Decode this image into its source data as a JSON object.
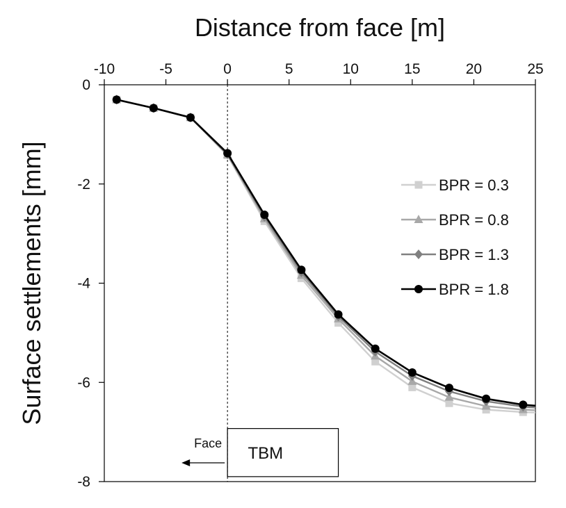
{
  "chart_data": {
    "type": "line",
    "title": "",
    "xlabel": "Distance from face [m]",
    "ylabel": "Surface settlements [mm]",
    "xlim": [
      -10,
      25
    ],
    "ylim": [
      -8,
      0
    ],
    "x_axis_position": "top",
    "x_ticks": [
      -10,
      -5,
      0,
      5,
      10,
      15,
      20,
      25
    ],
    "y_ticks": [
      0,
      -2,
      -4,
      -6,
      -8
    ],
    "grid": false,
    "legend_position": "right",
    "x": [
      -9,
      -6,
      -3,
      0,
      3,
      6,
      9,
      12,
      15,
      18,
      21,
      24
    ],
    "series": [
      {
        "name": "BPR = 0.3",
        "color": "#d0d0d0",
        "marker": "square",
        "values": [
          -0.3,
          -0.47,
          -0.66,
          -1.42,
          -2.75,
          -3.9,
          -4.8,
          -5.58,
          -6.1,
          -6.42,
          -6.55,
          -6.6
        ]
      },
      {
        "name": "BPR = 0.8",
        "color": "#a8a8a8",
        "marker": "triangle",
        "values": [
          -0.3,
          -0.47,
          -0.66,
          -1.41,
          -2.7,
          -3.84,
          -4.72,
          -5.47,
          -5.98,
          -6.3,
          -6.48,
          -6.55
        ]
      },
      {
        "name": "BPR = 1.3",
        "color": "#808080",
        "marker": "diamond",
        "values": [
          -0.3,
          -0.47,
          -0.66,
          -1.4,
          -2.66,
          -3.78,
          -4.67,
          -5.38,
          -5.87,
          -6.18,
          -6.38,
          -6.49
        ]
      },
      {
        "name": "BPR = 1.8",
        "color": "#000000",
        "marker": "circle",
        "values": [
          -0.3,
          -0.47,
          -0.66,
          -1.38,
          -2.62,
          -3.73,
          -4.63,
          -5.32,
          -5.8,
          -6.11,
          -6.33,
          -6.45
        ]
      }
    ],
    "annotations": {
      "face_label": "Face",
      "tbm_label": "TBM",
      "face_line_x": 0,
      "tbm_box_x": [
        0,
        9
      ],
      "tbm_box_y": [
        -7.9,
        -6.93
      ]
    }
  }
}
